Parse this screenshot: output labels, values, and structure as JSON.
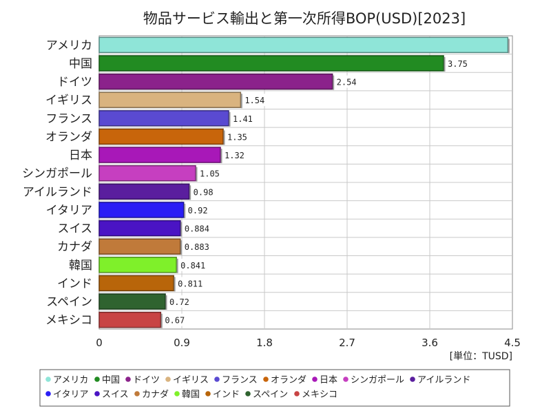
{
  "chart_data": {
    "type": "bar",
    "orientation": "horizontal",
    "title": "物品サービス輸出と第一次所得BOP(USD)[2023]",
    "unit_label": "[単位：TUSD]",
    "xlim": [
      0,
      4.5
    ],
    "ticks": [
      "0",
      "0.9",
      "1.8",
      "2.7",
      "3.6",
      "4.5"
    ],
    "tick_values": [
      0,
      0.9,
      1.8,
      2.7,
      3.6,
      4.5
    ],
    "grid": true,
    "legend": "bottom",
    "categories": [
      "アメリカ",
      "中国",
      "ドイツ",
      "イギリス",
      "フランス",
      "オランダ",
      "日本",
      "シンガポール",
      "アイルランド",
      "イタリア",
      "スイス",
      "カナダ",
      "韓国",
      "インド",
      "スペイン",
      "メキシコ"
    ],
    "values": [
      4.45,
      3.75,
      2.54,
      1.54,
      1.41,
      1.35,
      1.32,
      1.05,
      0.98,
      0.92,
      0.884,
      0.883,
      0.841,
      0.811,
      0.72,
      0.67
    ],
    "value_labels": [
      "",
      "3.75",
      "2.54",
      "1.54",
      "1.41",
      "1.35",
      "1.32",
      "1.05",
      "0.98",
      "0.92",
      "0.884",
      "0.883",
      "0.841",
      "0.811",
      "0.72",
      "0.67"
    ],
    "colors": [
      "#8fe5d8",
      "#228b22",
      "#8b228b",
      "#d9b37f",
      "#5a4ad1",
      "#c8650b",
      "#a818b8",
      "#c63fc0",
      "#5a1e9e",
      "#2a1ef5",
      "#4a14c4",
      "#c07a3a",
      "#7ff02a",
      "#b8650a",
      "#2f632f",
      "#c84444"
    ]
  }
}
